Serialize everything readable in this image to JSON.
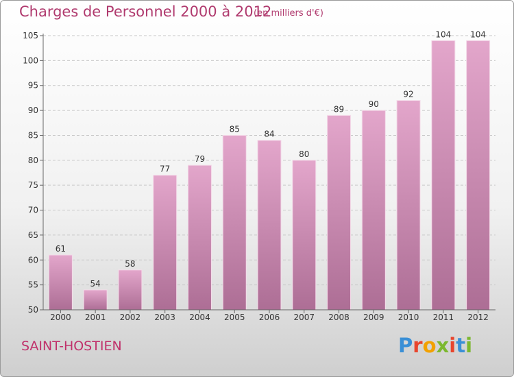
{
  "header": {
    "title": "Charges de Personnel 2000 à 2012",
    "subtitle": "(en milliers d'€)"
  },
  "footer": {
    "commune": "SAINT-HOSTIEN",
    "brand": "Proxiti",
    "brand_letter_colors": [
      "#3a8fd6",
      "#e8452d",
      "#f2a100",
      "#7cb82f",
      "#e8452d",
      "#3a8fd6",
      "#7cb82f"
    ]
  },
  "colors": {
    "bar_top": "#e3a6cb",
    "bar_bottom": "#ad6e95",
    "grid": "#c8c8c8",
    "axis": "#666666"
  },
  "chart_data": {
    "type": "bar",
    "title": "Charges de Personnel 2000 à 2012",
    "subtitle": "(en milliers d'€)",
    "xlabel": "",
    "ylabel": "",
    "categories": [
      "2000",
      "2001",
      "2002",
      "2003",
      "2004",
      "2005",
      "2006",
      "2007",
      "2008",
      "2009",
      "2010",
      "2011",
      "2012"
    ],
    "values": [
      61,
      54,
      58,
      77,
      79,
      85,
      84,
      80,
      89,
      90,
      92,
      104,
      104
    ],
    "ylim": [
      50,
      105
    ],
    "yticks": [
      50,
      55,
      60,
      65,
      70,
      75,
      80,
      85,
      90,
      95,
      100,
      105
    ],
    "grid": true,
    "grid_style": "dashed horizontal",
    "data_labels": true
  }
}
